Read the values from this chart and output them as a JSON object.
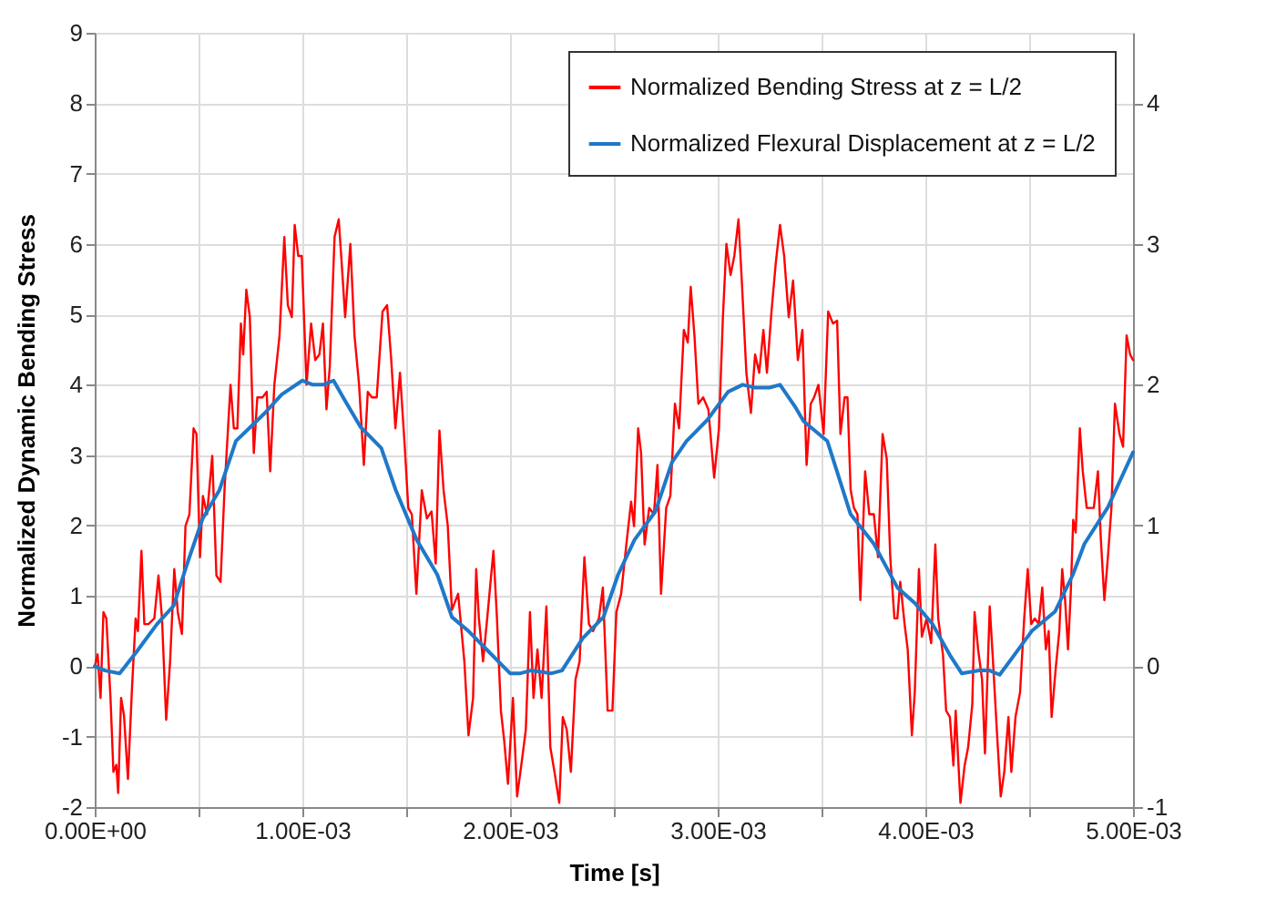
{
  "chart_data": {
    "type": "line",
    "xlabel": "Time [s]",
    "ylabel": "Normalized Dynamic Bending Stress",
    "xlim": [
      0,
      0.005
    ],
    "xticks": [
      {
        "value": 0,
        "label": "0.00E+00"
      },
      {
        "value": 0.0005,
        "label": null
      },
      {
        "value": 0.001,
        "label": "1.00E-03"
      },
      {
        "value": 0.0015,
        "label": null
      },
      {
        "value": 0.002,
        "label": "2.00E-03"
      },
      {
        "value": 0.0025,
        "label": null
      },
      {
        "value": 0.003,
        "label": "3.00E-03"
      },
      {
        "value": 0.0035,
        "label": null
      },
      {
        "value": 0.004,
        "label": "4.00E-03"
      },
      {
        "value": 0.0045,
        "label": null
      },
      {
        "value": 0.005,
        "label": "5.00E-03"
      }
    ],
    "ylim": [
      -2,
      9
    ],
    "yticks": [
      -2,
      -1,
      0,
      1,
      2,
      3,
      4,
      5,
      6,
      7,
      8,
      9
    ],
    "y2lim": [
      -1,
      4.5
    ],
    "y2ticks": [
      -1,
      0,
      1,
      2,
      3,
      4
    ],
    "grid": true,
    "legend": "top right",
    "series": [
      {
        "name": "Normalized Bending Stress at z = L/2",
        "color": "#ff0000",
        "x": [
          0,
          1.4e-05,
          2.8e-05,
          4.2e-05,
          5.6e-05,
          7.6e-05,
          9e-05,
          0.000104,
          0.000113,
          0.000127,
          0.000141,
          0.00016,
          0.00018,
          0.000197,
          0.000208,
          0.000225,
          0.000239,
          0.000259,
          0.000287,
          0.000307,
          0.000324,
          0.000344,
          0.000363,
          0.000383,
          0.0004,
          0.00042,
          0.000437,
          0.000456,
          0.000476,
          0.00049,
          0.000507,
          0.000521,
          0.000541,
          0.000566,
          0.000586,
          0.000606,
          0.000625,
          0.000654,
          0.00067,
          0.000687,
          0.000704,
          0.000715,
          0.00073,
          0.000747,
          0.000766,
          0.000783,
          0.000808,
          0.000828,
          0.000845,
          0.000865,
          0.00089,
          0.000913,
          0.00093,
          0.000949,
          0.000963,
          0.00098,
          0.000997,
          0.00102,
          0.001042,
          0.001062,
          0.001082,
          0.001099,
          0.001116,
          0.001132,
          0.001155,
          0.001175,
          0.001189,
          0.001206,
          0.001231,
          0.001251,
          0.001273,
          0.001296,
          0.001315,
          0.001335,
          0.001358,
          0.001386,
          0.001408,
          0.001428,
          0.001448,
          0.00147,
          0.001493,
          0.00151,
          0.001527,
          0.001549,
          0.001575,
          0.0016,
          0.001622,
          0.001642,
          0.00166,
          0.00168,
          0.0017,
          0.00172,
          0.00175,
          0.00178,
          0.0018,
          0.001822,
          0.001837,
          0.00185,
          0.00187,
          0.00189,
          0.00192,
          0.001937,
          0.001956,
          0.001972,
          0.00199,
          0.002014,
          0.002034,
          0.002054,
          0.002076,
          0.002096,
          0.002113,
          0.002132,
          0.002152,
          0.002175,
          0.002194,
          0.002214,
          0.002237,
          0.002254,
          0.002273,
          0.002293,
          0.002315,
          0.002335,
          0.002358,
          0.00238,
          0.0024,
          0.002428,
          0.002447,
          0.00247,
          0.002493,
          0.002512,
          0.002535,
          0.00256,
          0.002583,
          0.002597,
          0.002617,
          0.002631,
          0.002648,
          0.00267,
          0.002693,
          0.00271,
          0.002727,
          0.002752,
          0.002772,
          0.002794,
          0.002814,
          0.002837,
          0.002856,
          0.00287,
          0.002888,
          0.002907,
          0.00293,
          0.002955,
          0.002983,
          0.003006,
          0.003025,
          0.003042,
          0.003062,
          0.00308,
          0.0031,
          0.003116,
          0.003138,
          0.00316,
          0.00318,
          0.0032,
          0.00322,
          0.003237,
          0.003259,
          0.00328,
          0.0033,
          0.00332,
          0.003342,
          0.003363,
          0.003386,
          0.003408,
          0.003428,
          0.003448,
          0.003464,
          0.003485,
          0.00351,
          0.003532,
          0.003555,
          0.003575,
          0.003591,
          0.003611,
          0.003625,
          0.00364,
          0.003656,
          0.003673,
          0.003687,
          0.00371,
          0.00373,
          0.003752,
          0.003772,
          0.003794,
          0.003814,
          0.003831,
          0.003851,
          0.003865,
          0.003879,
          0.0039,
          0.003915,
          0.003935,
          0.003949,
          0.003969,
          0.003983,
          0.004006,
          0.004028,
          0.004048,
          0.004062,
          0.004085,
          0.0041,
          0.004118,
          0.004135,
          0.004146,
          0.004169,
          0.004189,
          0.004206,
          0.004226,
          0.004237,
          0.004254,
          0.004273,
          0.004287,
          0.00431,
          0.004324,
          0.004344,
          0.004363,
          0.00438,
          0.0044,
          0.004414,
          0.004434,
          0.004456,
          0.004476,
          0.004493,
          0.00451,
          0.004527,
          0.004546,
          0.004563,
          0.00458,
          0.004594,
          0.004608,
          0.004628,
          0.004645,
          0.004659,
          0.004673,
          0.004687,
          0.0047,
          0.004712,
          0.004724,
          0.004744,
          0.004758,
          0.004777,
          0.004797,
          0.004811,
          0.004831,
          0.004845,
          0.004862,
          0.004879,
          0.004896,
          0.004913,
          0.004935,
          0.004952,
          0.004969,
          0.004986,
          0.005
        ],
        "values": [
          0,
          0.17,
          -0.45,
          0.77,
          0.68,
          -0.45,
          -1.5,
          -1.4,
          -1.8,
          -0.45,
          -0.7,
          -1.6,
          -0.28,
          0.68,
          0.5,
          1.64,
          0.6,
          0.6,
          0.68,
          1.29,
          0.68,
          -0.76,
          0.07,
          1.38,
          0.77,
          0.46,
          1.99,
          2.16,
          3.38,
          3.3,
          1.55,
          2.42,
          2.16,
          2.99,
          1.29,
          1.2,
          2.51,
          4,
          3.38,
          3.38,
          4.87,
          4.43,
          5.35,
          4.96,
          3.03,
          3.82,
          3.82,
          3.9,
          2.77,
          4,
          4.7,
          6.1,
          5.13,
          4.96,
          6.27,
          5.83,
          5.83,
          4,
          4.87,
          4.35,
          4.43,
          4.87,
          3.65,
          4.26,
          6.1,
          6.35,
          5.74,
          4.96,
          6,
          4.7,
          4,
          2.86,
          3.9,
          3.82,
          3.82,
          5.04,
          5.13,
          4.35,
          3.38,
          4.17,
          3.12,
          2.25,
          2.16,
          1.03,
          2.5,
          2.1,
          2.2,
          1.46,
          3.35,
          2.5,
          2,
          0.8,
          1.03,
          0.07,
          -0.98,
          -0.45,
          1.38,
          0.68,
          0.07,
          0.68,
          1.64,
          0.68,
          -0.63,
          -1.06,
          -1.67,
          -0.45,
          -1.85,
          -1.41,
          -0.9,
          0.77,
          -0.45,
          0.24,
          -0.45,
          0.85,
          -1.15,
          -1.5,
          -1.94,
          -0.72,
          -0.9,
          -1.5,
          -0.19,
          0.07,
          1.55,
          0.6,
          0.5,
          0.68,
          1.12,
          -0.63,
          -0.63,
          0.77,
          1.03,
          1.73,
          2.34,
          1.99,
          3.38,
          3.03,
          1.73,
          2.25,
          2.16,
          2.86,
          1.03,
          2.25,
          2.42,
          3.73,
          3.38,
          4.78,
          4.6,
          5.39,
          4.7,
          3.73,
          3.82,
          3.65,
          2.68,
          3.38,
          4.96,
          6,
          5.56,
          5.83,
          6.35,
          5.48,
          4.17,
          3.6,
          4.43,
          4.17,
          4.78,
          4.17,
          5.04,
          5.74,
          6.27,
          5.83,
          4.96,
          5.48,
          4.35,
          4.78,
          2.86,
          3.73,
          3.82,
          4,
          3.3,
          5.04,
          4.87,
          4.91,
          3.3,
          3.82,
          3.82,
          2.51,
          2.25,
          2.16,
          0.94,
          2.77,
          2.16,
          2.16,
          1.55,
          3.3,
          2.95,
          1.55,
          0.68,
          0.68,
          1.2,
          0.6,
          0.24,
          -0.98,
          -0.37,
          1.38,
          0.42,
          0.68,
          0.33,
          1.73,
          0.68,
          0.16,
          -0.63,
          -0.72,
          -1.41,
          -0.63,
          -1.94,
          -1.41,
          -1.15,
          -0.54,
          0.77,
          0.24,
          -0.19,
          -1.24,
          0.85,
          0.16,
          -0.9,
          -1.85,
          -1.5,
          -0.72,
          -1.5,
          -0.72,
          -0.37,
          0.68,
          1.38,
          0.6,
          0.68,
          0.6,
          1.12,
          0.24,
          0.5,
          -0.72,
          -0.02,
          0.5,
          1.38,
          0.94,
          0.24,
          1.03,
          2.08,
          1.9,
          3.38,
          2.77,
          2.25,
          2.25,
          2.25,
          2.77,
          1.81,
          0.94,
          1.55,
          2.25,
          3.73,
          3.3,
          3.12,
          4.7,
          4.43,
          4.35
        ]
      },
      {
        "name": "Normalized Flexural Displacement at z = L/2",
        "color": "#1f78c8",
        "axis": "y2",
        "x": [
          0,
          5e-05,
          0.00012,
          0.0002,
          0.0003,
          0.00038,
          0.00045,
          0.00052,
          0.0006,
          0.00068,
          0.00075,
          0.00082,
          0.0009,
          0.001,
          0.00105,
          0.0011,
          0.00115,
          0.0012,
          0.00128,
          0.00138,
          0.00145,
          0.00155,
          0.00165,
          0.00172,
          0.0018,
          0.0019,
          0.002,
          0.00205,
          0.0021,
          0.0022,
          0.00225,
          0.00235,
          0.00245,
          0.00252,
          0.0026,
          0.0027,
          0.00278,
          0.00285,
          0.00295,
          0.00305,
          0.00312,
          0.00318,
          0.00325,
          0.0033,
          0.00337,
          0.003414,
          0.003528,
          0.00364,
          0.003752,
          0.003865,
          0.003949,
          0.004034,
          0.004118,
          0.004175,
          0.004259,
          0.00431,
          0.004358,
          0.004428,
          0.004512,
          0.004625,
          0.00471,
          0.004766,
          0.004879,
          0.005
        ],
        "values": [
          0,
          -0.03,
          -0.05,
          0.1,
          0.3,
          0.43,
          0.75,
          1.05,
          1.25,
          1.6,
          1.7,
          1.8,
          1.93,
          2.03,
          2,
          2,
          2.03,
          1.9,
          1.7,
          1.55,
          1.25,
          0.9,
          0.65,
          0.35,
          0.25,
          0.1,
          -0.05,
          -0.05,
          -0.03,
          -0.05,
          -0.03,
          0.2,
          0.35,
          0.65,
          0.9,
          1.1,
          1.45,
          1.6,
          1.75,
          1.95,
          2,
          1.98,
          1.98,
          2,
          1.85,
          1.74,
          1.6,
          1.08,
          0.87,
          0.56,
          0.45,
          0.3,
          0.08,
          -0.05,
          -0.03,
          -0.03,
          -0.06,
          0.08,
          0.25,
          0.39,
          0.65,
          0.87,
          1.13,
          1.52
        ]
      }
    ]
  }
}
